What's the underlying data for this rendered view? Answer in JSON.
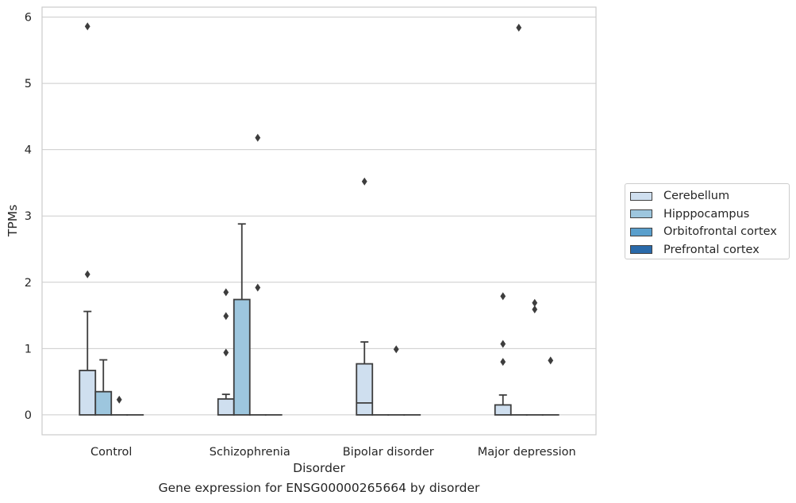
{
  "chart_data": {
    "type": "box",
    "xlabel": "Disorder",
    "ylabel": "TPMs",
    "ylim": [
      -0.3,
      6.15
    ],
    "yticks": [
      0,
      1,
      2,
      3,
      4,
      5,
      6
    ],
    "grid": true,
    "legend_position": "right",
    "categories": [
      "Control",
      "Schizophrenia",
      "Bipolar disorder",
      "Major depression"
    ],
    "series": [
      {
        "name": "Cerebellum",
        "color": "#cfdfef",
        "boxes": [
          {
            "q1": 0,
            "median": 0,
            "q3": 0.67,
            "whisker_low": 0,
            "whisker_high": 1.56,
            "outliers": [
              2.12,
              5.86
            ]
          },
          {
            "q1": 0,
            "median": 0,
            "q3": 0.24,
            "whisker_low": 0,
            "whisker_high": 0.31,
            "outliers": [
              0.94,
              1.49,
              1.85
            ]
          },
          {
            "q1": 0,
            "median": 0.18,
            "q3": 0.77,
            "whisker_low": 0,
            "whisker_high": 1.1,
            "outliers": [
              3.52
            ]
          },
          {
            "q1": 0,
            "median": 0,
            "q3": 0.15,
            "whisker_low": 0,
            "whisker_high": 0.3,
            "outliers": [
              0.8,
              1.07,
              1.79
            ]
          }
        ]
      },
      {
        "name": "Hipppocampus",
        "color": "#9dc6de",
        "boxes": [
          {
            "q1": 0,
            "median": 0,
            "q3": 0.35,
            "whisker_low": 0,
            "whisker_high": 0.83,
            "outliers": []
          },
          {
            "q1": 0,
            "median": 0,
            "q3": 1.74,
            "whisker_low": 0,
            "whisker_high": 2.88,
            "outliers": []
          },
          {
            "q1": 0,
            "median": 0,
            "q3": 0,
            "whisker_low": 0,
            "whisker_high": 0,
            "outliers": []
          },
          {
            "q1": 0,
            "median": 0,
            "q3": 0,
            "whisker_low": 0,
            "whisker_high": 0,
            "outliers": [
              5.84
            ]
          }
        ]
      },
      {
        "name": "Orbitofrontal cortex",
        "color": "#5a9fcc",
        "boxes": [
          {
            "q1": 0,
            "median": 0,
            "q3": 0,
            "whisker_low": 0,
            "whisker_high": 0,
            "outliers": [
              0.23
            ]
          },
          {
            "q1": 0,
            "median": 0,
            "q3": 0,
            "whisker_low": 0,
            "whisker_high": 0,
            "outliers": [
              1.92,
              4.18
            ]
          },
          {
            "q1": 0,
            "median": 0,
            "q3": 0,
            "whisker_low": 0,
            "whisker_high": 0,
            "outliers": [
              0.99
            ]
          },
          {
            "q1": 0,
            "median": 0,
            "q3": 0,
            "whisker_low": 0,
            "whisker_high": 0,
            "outliers": [
              1.59,
              1.69
            ]
          }
        ]
      },
      {
        "name": "Prefrontal cortex",
        "color": "#2a6aaa",
        "boxes": [
          {
            "q1": 0,
            "median": 0,
            "q3": 0,
            "whisker_low": 0,
            "whisker_high": 0,
            "outliers": []
          },
          {
            "q1": 0,
            "median": 0,
            "q3": 0,
            "whisker_low": 0,
            "whisker_high": 0,
            "outliers": []
          },
          {
            "q1": 0,
            "median": 0,
            "q3": 0,
            "whisker_low": 0,
            "whisker_high": 0,
            "outliers": []
          },
          {
            "q1": 0,
            "median": 0,
            "q3": 0,
            "whisker_low": 0,
            "whisker_high": 0,
            "outliers": [
              0.82
            ]
          }
        ]
      }
    ]
  },
  "caption": "Gene expression for ENSG00000265664 by disorder"
}
